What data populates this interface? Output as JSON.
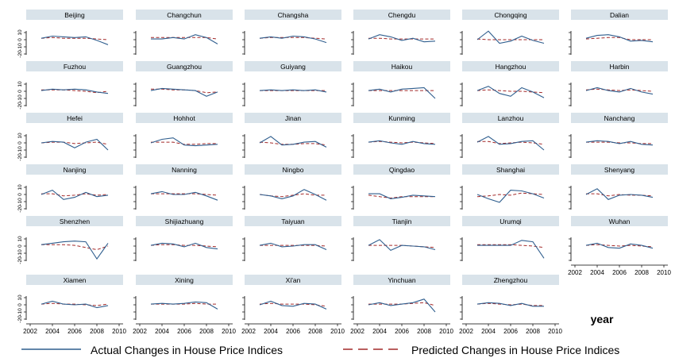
{
  "figure": {
    "x_axis_title": "year",
    "legend": {
      "actual_label": "Actual Changes in House Price Indices",
      "predicted_label": "Predicted Changes in House Price Indices"
    },
    "y_ticks": [
      "-20",
      "-10",
      "0",
      "10"
    ],
    "x_ticks": [
      "2002",
      "2004",
      "2006",
      "2008",
      "2010"
    ]
  },
  "colors": {
    "actual": "#2f5e8e",
    "predicted": "#a32a2a",
    "header_bg": "#d9e3ea",
    "axis": "#000000"
  },
  "chart_data": {
    "type": "line",
    "layout": "small-multiples",
    "xlabel": "year",
    "xlim": [
      2002,
      2010
    ],
    "ylim": [
      -20,
      10
    ],
    "x": [
      2003,
      2004,
      2005,
      2006,
      2007,
      2008,
      2009
    ],
    "legend_position": "bottom",
    "series_names": [
      "Actual Changes in House Price Indices",
      "Predicted Changes in House Price Indices"
    ],
    "panels": [
      {
        "city": "Beijing",
        "actual": [
          2,
          5,
          4,
          3,
          4,
          -1,
          -7
        ],
        "predicted": [
          2,
          3,
          2,
          2,
          2,
          1,
          0
        ]
      },
      {
        "city": "Changchun",
        "actual": [
          1,
          1,
          3,
          1,
          7,
          3,
          -6
        ],
        "predicted": [
          3,
          3,
          3,
          3,
          3,
          3,
          1
        ]
      },
      {
        "city": "Changsha",
        "actual": [
          2,
          4,
          2,
          5,
          4,
          1,
          -4
        ],
        "predicted": [
          2,
          3,
          3,
          3,
          3,
          2,
          1
        ]
      },
      {
        "city": "Chengdu",
        "actual": [
          1,
          7,
          4,
          -1,
          2,
          -3,
          -2
        ],
        "predicted": [
          2,
          2,
          1,
          1,
          1,
          1,
          1
        ]
      },
      {
        "city": "Chongqing",
        "actual": [
          0,
          12,
          -5,
          -2,
          5,
          -1,
          -5
        ],
        "predicted": [
          1,
          0,
          0,
          0,
          0,
          0,
          0
        ]
      },
      {
        "city": "Dalian",
        "actual": [
          2,
          6,
          7,
          4,
          -2,
          -1,
          -3
        ],
        "predicted": [
          1,
          2,
          3,
          3,
          0,
          0,
          0
        ]
      },
      {
        "city": "Fuzhou",
        "actual": [
          1,
          3,
          2,
          3,
          2,
          -1,
          -3
        ],
        "predicted": [
          2,
          2,
          2,
          1,
          0,
          -2,
          0
        ]
      },
      {
        "city": "Guangzhou",
        "actual": [
          1,
          4,
          3,
          2,
          1,
          -7,
          -1
        ],
        "predicted": [
          3,
          3,
          2,
          2,
          1,
          -2,
          -1
        ]
      },
      {
        "city": "Guiyang",
        "actual": [
          1,
          2,
          1,
          2,
          1,
          2,
          -1
        ],
        "predicted": [
          1,
          1,
          1,
          1,
          1,
          1,
          1
        ]
      },
      {
        "city": "Haikou",
        "actual": [
          1,
          3,
          -1,
          3,
          4,
          5,
          -10
        ],
        "predicted": [
          1,
          1,
          1,
          1,
          1,
          1,
          1
        ]
      },
      {
        "city": "Hangzhou",
        "actual": [
          1,
          7,
          -3,
          -7,
          5,
          -1,
          -9
        ],
        "predicted": [
          1,
          2,
          1,
          0,
          0,
          -1,
          -2
        ]
      },
      {
        "city": "Harbin",
        "actual": [
          1,
          5,
          1,
          -1,
          4,
          -1,
          -4
        ],
        "predicted": [
          2,
          3,
          2,
          1,
          2,
          1,
          0
        ]
      },
      {
        "city": "Hefei",
        "actual": [
          0,
          2,
          1,
          -7,
          1,
          5,
          -10
        ],
        "predicted": [
          0,
          1,
          1,
          -1,
          0,
          1,
          -2
        ]
      },
      {
        "city": "Hohhot",
        "actual": [
          0,
          5,
          7,
          -3,
          -4,
          -3,
          -2
        ],
        "predicted": [
          1,
          1,
          1,
          -2,
          -2,
          -1,
          -1
        ]
      },
      {
        "city": "Jinan",
        "actual": [
          0,
          9,
          -3,
          -2,
          1,
          2,
          -6
        ],
        "predicted": [
          1,
          0,
          -2,
          -2,
          -1,
          -1,
          -3
        ]
      },
      {
        "city": "Kunming",
        "actual": [
          1,
          3,
          0,
          -2,
          2,
          -1,
          -2
        ],
        "predicted": [
          1,
          2,
          1,
          0,
          1,
          0,
          -1
        ]
      },
      {
        "city": "Lanzhou",
        "actual": [
          1,
          9,
          -2,
          -1,
          2,
          3,
          -10
        ],
        "predicted": [
          2,
          2,
          -1,
          0,
          1,
          0,
          -2
        ]
      },
      {
        "city": "Nanchang",
        "actual": [
          1,
          3,
          2,
          -1,
          2,
          -2,
          -3
        ],
        "predicted": [
          1,
          1,
          1,
          0,
          0,
          -1,
          -1
        ]
      },
      {
        "city": "Nanjing",
        "actual": [
          0,
          6,
          -7,
          -4,
          3,
          -3,
          -1
        ],
        "predicted": [
          1,
          1,
          -2,
          -1,
          1,
          -1,
          0
        ]
      },
      {
        "city": "Nanning",
        "actual": [
          1,
          4,
          0,
          0,
          3,
          -2,
          -8
        ],
        "predicted": [
          1,
          1,
          1,
          1,
          1,
          0,
          -1
        ]
      },
      {
        "city": "Ningbo",
        "actual": [
          0,
          -2,
          -6,
          -2,
          7,
          0,
          -8
        ],
        "predicted": [
          0,
          -2,
          -3,
          -1,
          1,
          -1,
          -1
        ]
      },
      {
        "city": "Qingdao",
        "actual": [
          1,
          1,
          -6,
          -4,
          -1,
          -2,
          -3
        ],
        "predicted": [
          -1,
          -3,
          -5,
          -3,
          -3,
          -3,
          -3
        ]
      },
      {
        "city": "Shanghai",
        "actual": [
          0,
          -6,
          -11,
          6,
          5,
          1,
          -5
        ],
        "predicted": [
          -3,
          -2,
          0,
          -1,
          2,
          1,
          0
        ]
      },
      {
        "city": "Shenyang",
        "actual": [
          0,
          8,
          -7,
          -1,
          0,
          -1,
          -4
        ],
        "predicted": [
          1,
          1,
          -2,
          0,
          -1,
          -1,
          -2
        ]
      },
      {
        "city": "Shenzhen",
        "actual": [
          2,
          4,
          6,
          7,
          6,
          -18,
          4
        ],
        "predicted": [
          2,
          2,
          2,
          1,
          -2,
          -5,
          0
        ]
      },
      {
        "city": "Shijiazhuang",
        "actual": [
          1,
          4,
          3,
          -1,
          4,
          -2,
          -4
        ],
        "predicted": [
          1,
          2,
          2,
          1,
          1,
          0,
          -1
        ]
      },
      {
        "city": "Taiyuan",
        "actual": [
          1,
          4,
          -1,
          0,
          2,
          2,
          -5
        ],
        "predicted": [
          1,
          1,
          1,
          1,
          1,
          1,
          0
        ]
      },
      {
        "city": "Tianjin",
        "actual": [
          1,
          9,
          -6,
          1,
          0,
          -1,
          -5
        ],
        "predicted": [
          1,
          1,
          1,
          1,
          0,
          -1,
          -2
        ]
      },
      {
        "city": "Urumqi",
        "actual": [
          1,
          1,
          1,
          1,
          8,
          6,
          -17
        ],
        "predicted": [
          2,
          2,
          2,
          2,
          1,
          0,
          -2
        ]
      },
      {
        "city": "Wuhan",
        "actual": [
          1,
          4,
          -2,
          -3,
          3,
          1,
          -3
        ],
        "predicted": [
          1,
          2,
          1,
          0,
          1,
          0,
          -1
        ]
      },
      {
        "city": "Xiamen",
        "actual": [
          1,
          5,
          1,
          0,
          1,
          -4,
          -1
        ],
        "predicted": [
          1,
          2,
          1,
          1,
          0,
          -1,
          1
        ]
      },
      {
        "city": "Xining",
        "actual": [
          1,
          2,
          1,
          2,
          4,
          3,
          -6
        ],
        "predicted": [
          1,
          1,
          1,
          1,
          2,
          1,
          1
        ]
      },
      {
        "city": "Xi'an",
        "actual": [
          0,
          5,
          -1,
          -2,
          2,
          1,
          -6
        ],
        "predicted": [
          1,
          2,
          1,
          1,
          1,
          0,
          -2
        ]
      },
      {
        "city": "Yinchuan",
        "actual": [
          0,
          3,
          -1,
          1,
          3,
          8,
          -10
        ],
        "predicted": [
          1,
          1,
          1,
          1,
          2,
          3,
          -1
        ]
      },
      {
        "city": "Zhengzhou",
        "actual": [
          1,
          3,
          2,
          -1,
          2,
          -2,
          -2
        ],
        "predicted": [
          1,
          2,
          1,
          0,
          1,
          -1,
          -1
        ]
      }
    ]
  }
}
